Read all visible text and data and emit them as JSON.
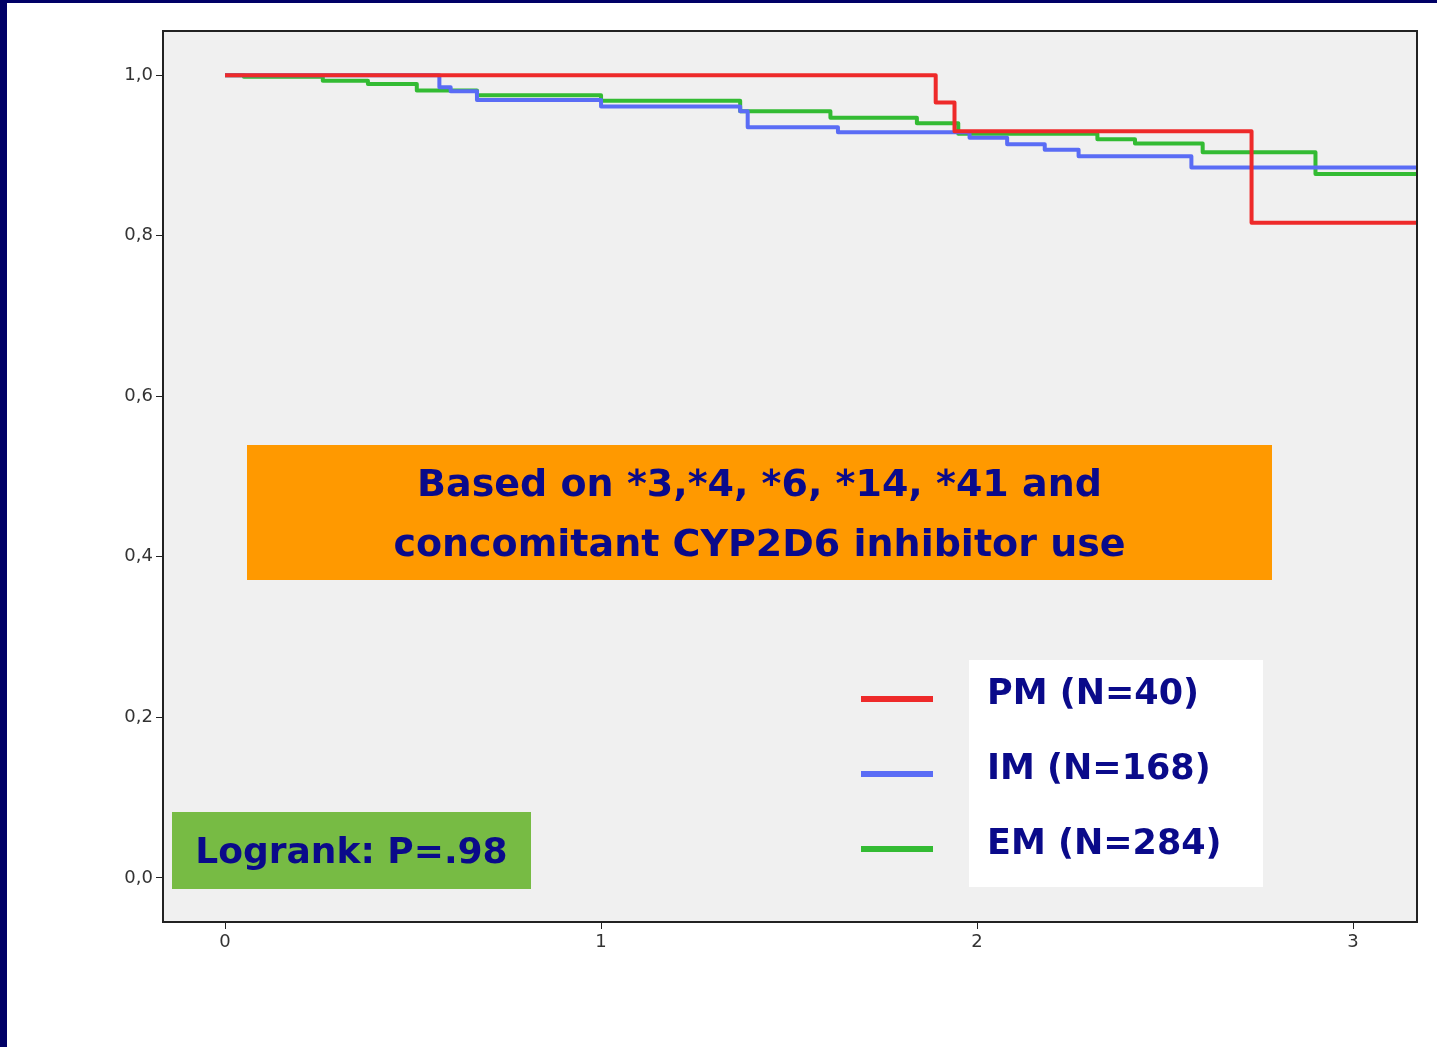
{
  "chart_data": {
    "type": "step",
    "xlim": [
      -0.165,
      3.17
    ],
    "ylim": [
      -0.055,
      1.055
    ],
    "xticks": [
      0,
      1,
      2,
      3
    ],
    "yticks": [
      {
        "value": 0,
        "label": "0,0"
      },
      {
        "value": 0.2,
        "label": "0,2"
      },
      {
        "value": 0.4,
        "label": "0,4"
      },
      {
        "value": 0.6,
        "label": "0,6"
      },
      {
        "value": 0.8,
        "label": "0,8"
      },
      {
        "value": 1,
        "label": "1,0"
      }
    ],
    "grid": false,
    "legend": "bottom right",
    "series": [
      {
        "name": "PM (N=40)",
        "color": "#ee2a2a",
        "x": [
          0,
          1.89,
          1.94,
          2.73,
          3.17
        ],
        "values": [
          1.0,
          0.966,
          0.93,
          0.816,
          0.816
        ]
      },
      {
        "name": "IM (N=168)",
        "color": "#5a6cf5",
        "x": [
          0,
          0.57,
          0.6,
          0.67,
          1.0,
          1.37,
          1.39,
          1.63,
          1.98,
          2.08,
          2.18,
          2.27,
          2.57,
          3.17
        ],
        "values": [
          1.0,
          0.985,
          0.98,
          0.969,
          0.961,
          0.955,
          0.935,
          0.929,
          0.922,
          0.914,
          0.907,
          0.899,
          0.885,
          0.885
        ]
      },
      {
        "name": "EM (N=284)",
        "color": "#33bb33",
        "x": [
          0,
          0.05,
          0.26,
          0.38,
          0.51,
          0.67,
          1.0,
          1.37,
          1.61,
          1.84,
          1.95,
          2.32,
          2.42,
          2.6,
          2.9,
          3.17
        ],
        "values": [
          1.0,
          0.998,
          0.993,
          0.989,
          0.981,
          0.975,
          0.968,
          0.955,
          0.947,
          0.94,
          0.927,
          0.92,
          0.915,
          0.904,
          0.877,
          0.877
        ]
      }
    ],
    "annotations": [
      "Based on *3,*4, *6, *14, *41 and concomitant CYP2D6 inhibitor use",
      "Logrank: P=.98"
    ]
  }
}
